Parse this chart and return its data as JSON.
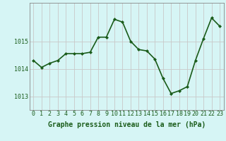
{
  "x": [
    0,
    1,
    2,
    3,
    4,
    5,
    6,
    7,
    8,
    9,
    10,
    11,
    12,
    13,
    14,
    15,
    16,
    17,
    18,
    19,
    20,
    21,
    22,
    23
  ],
  "y": [
    1014.3,
    1014.05,
    1014.2,
    1014.3,
    1014.55,
    1014.55,
    1014.55,
    1014.6,
    1015.15,
    1015.15,
    1015.8,
    1015.7,
    1015.0,
    1014.7,
    1014.65,
    1014.35,
    1013.65,
    1013.1,
    1013.2,
    1013.35,
    1014.3,
    1015.1,
    1015.85,
    1015.55
  ],
  "line_color": "#1a5c1a",
  "marker": "D",
  "marker_size": 2.0,
  "line_width": 1.2,
  "bg_color": "#d6f5f5",
  "grid_color": "#c8c8c8",
  "grid_linewidth": 0.6,
  "xlabel": "Graphe pression niveau de la mer (hPa)",
  "xlabel_fontsize": 7.0,
  "tick_fontsize": 6.0,
  "yticks": [
    1013,
    1014,
    1015
  ],
  "ylim": [
    1012.5,
    1016.4
  ],
  "xlim": [
    -0.5,
    23.5
  ],
  "xticks": [
    0,
    1,
    2,
    3,
    4,
    5,
    6,
    7,
    8,
    9,
    10,
    11,
    12,
    13,
    14,
    15,
    16,
    17,
    18,
    19,
    20,
    21,
    22,
    23
  ]
}
